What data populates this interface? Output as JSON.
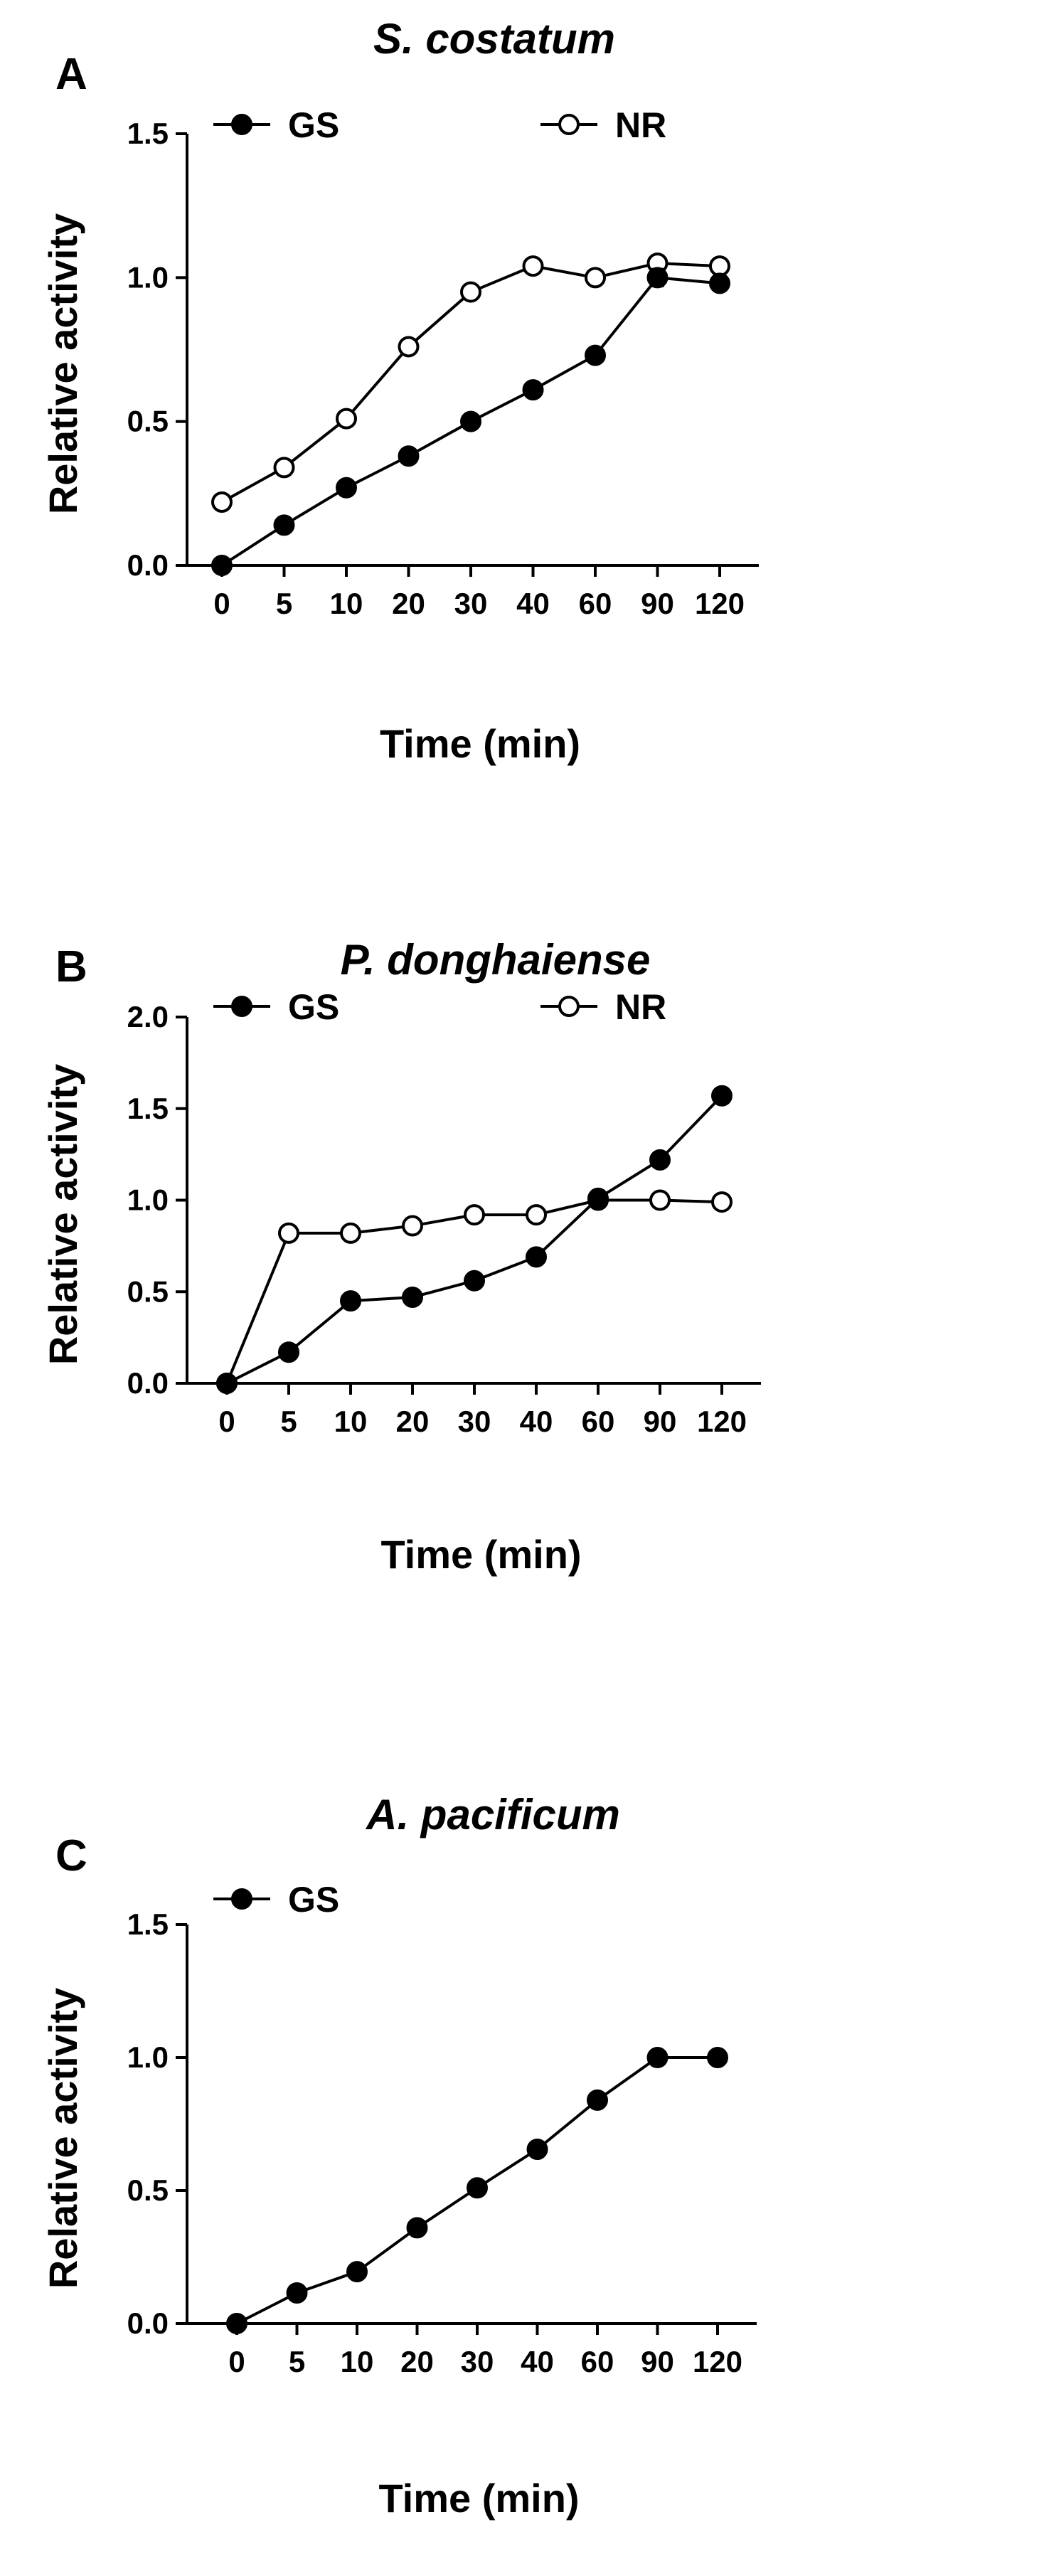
{
  "chart_data": [
    {
      "panel": "A",
      "type": "line",
      "title": "S. costatum",
      "xlabel": "Time (min)",
      "ylabel": "Relative activity",
      "categories": [
        "0",
        "5",
        "10",
        "20",
        "30",
        "40",
        "60",
        "90",
        "120"
      ],
      "ylim": [
        0,
        1.5
      ],
      "yticks": [
        "0.0",
        "0.5",
        "1.0",
        "1.5"
      ],
      "legend": "top-left",
      "grid": false,
      "series": [
        {
          "name": "GS",
          "marker": "filled-circle",
          "values": [
            0.0,
            0.14,
            0.27,
            0.38,
            0.5,
            0.61,
            0.73,
            1.0,
            0.98
          ],
          "errors": [
            0.01,
            0.01,
            0.01,
            0.02,
            0.01,
            0.02,
            0.01,
            0.03,
            0.02
          ]
        },
        {
          "name": "NR",
          "marker": "open-circle",
          "values": [
            0.22,
            0.34,
            0.51,
            0.76,
            0.95,
            1.04,
            1.0,
            1.05,
            1.04
          ],
          "errors": [
            0.01,
            0.01,
            0.01,
            0.01,
            0.01,
            0.01,
            0.01,
            0.01,
            0.01
          ]
        }
      ]
    },
    {
      "panel": "B",
      "type": "line",
      "title": "P. donghaiense",
      "xlabel": "Time (min)",
      "ylabel": "Relative activity",
      "categories": [
        "0",
        "5",
        "10",
        "20",
        "30",
        "40",
        "60",
        "90",
        "120"
      ],
      "ylim": [
        0,
        2.0
      ],
      "yticks": [
        "0.0",
        "0.5",
        "1.0",
        "1.5",
        "2.0"
      ],
      "legend": "top-left",
      "grid": false,
      "series": [
        {
          "name": "GS",
          "marker": "filled-circle",
          "values": [
            0.0,
            0.17,
            0.45,
            0.47,
            0.56,
            0.69,
            1.01,
            1.22,
            1.57
          ],
          "errors": [
            0.01,
            0.01,
            0.01,
            0.01,
            0.01,
            0.03,
            0.01,
            0.01,
            0.03
          ]
        },
        {
          "name": "NR",
          "marker": "open-circle",
          "values": [
            0.0,
            0.82,
            0.82,
            0.86,
            0.92,
            0.92,
            1.0,
            1.0,
            0.99
          ],
          "errors": [
            0.01,
            0.01,
            0.01,
            0.01,
            0.01,
            0.01,
            0.01,
            0.01,
            0.01
          ]
        }
      ]
    },
    {
      "panel": "C",
      "type": "line",
      "title": "A. pacificum",
      "xlabel": "Time (min)",
      "ylabel": "Relative activity",
      "categories": [
        "0",
        "5",
        "10",
        "20",
        "30",
        "40",
        "60",
        "90",
        "120"
      ],
      "ylim": [
        0,
        1.5
      ],
      "yticks": [
        "0.0",
        "0.5",
        "1.0",
        "1.5"
      ],
      "legend": "top-left",
      "grid": false,
      "series": [
        {
          "name": "GS",
          "marker": "filled-circle",
          "values": [
            0.0,
            0.115,
            0.195,
            0.36,
            0.51,
            0.655,
            0.84,
            1.0,
            1.0
          ],
          "errors": [
            0.005,
            0.01,
            0.01,
            0.01,
            0.01,
            0.01,
            0.02,
            0.02,
            0.01
          ]
        }
      ]
    }
  ]
}
